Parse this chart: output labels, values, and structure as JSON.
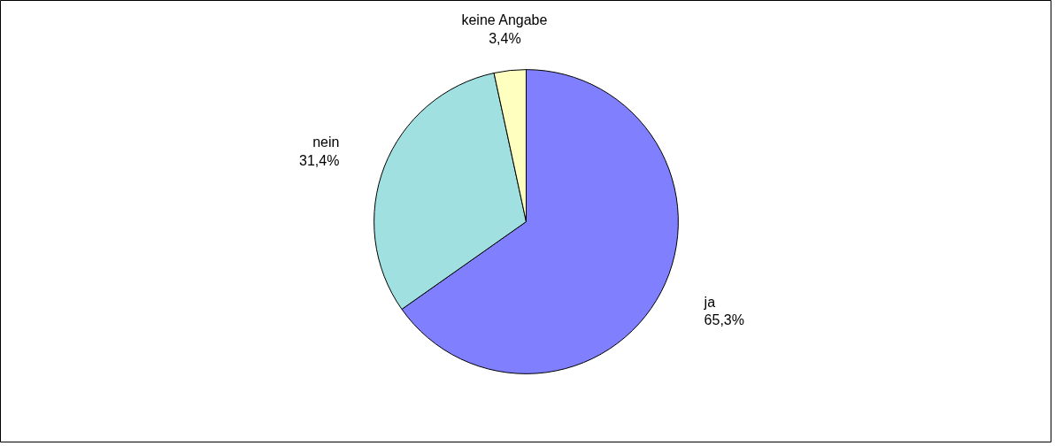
{
  "chart_data": {
    "type": "pie",
    "categories": [
      "ja",
      "nein",
      "keine Angabe"
    ],
    "values": [
      65.3,
      31.4,
      3.4
    ],
    "colors": [
      "#8080ff",
      "#a0e0e0",
      "#ffffc0"
    ],
    "value_labels": [
      "65,3%",
      "31,4%",
      "3,4%"
    ]
  }
}
